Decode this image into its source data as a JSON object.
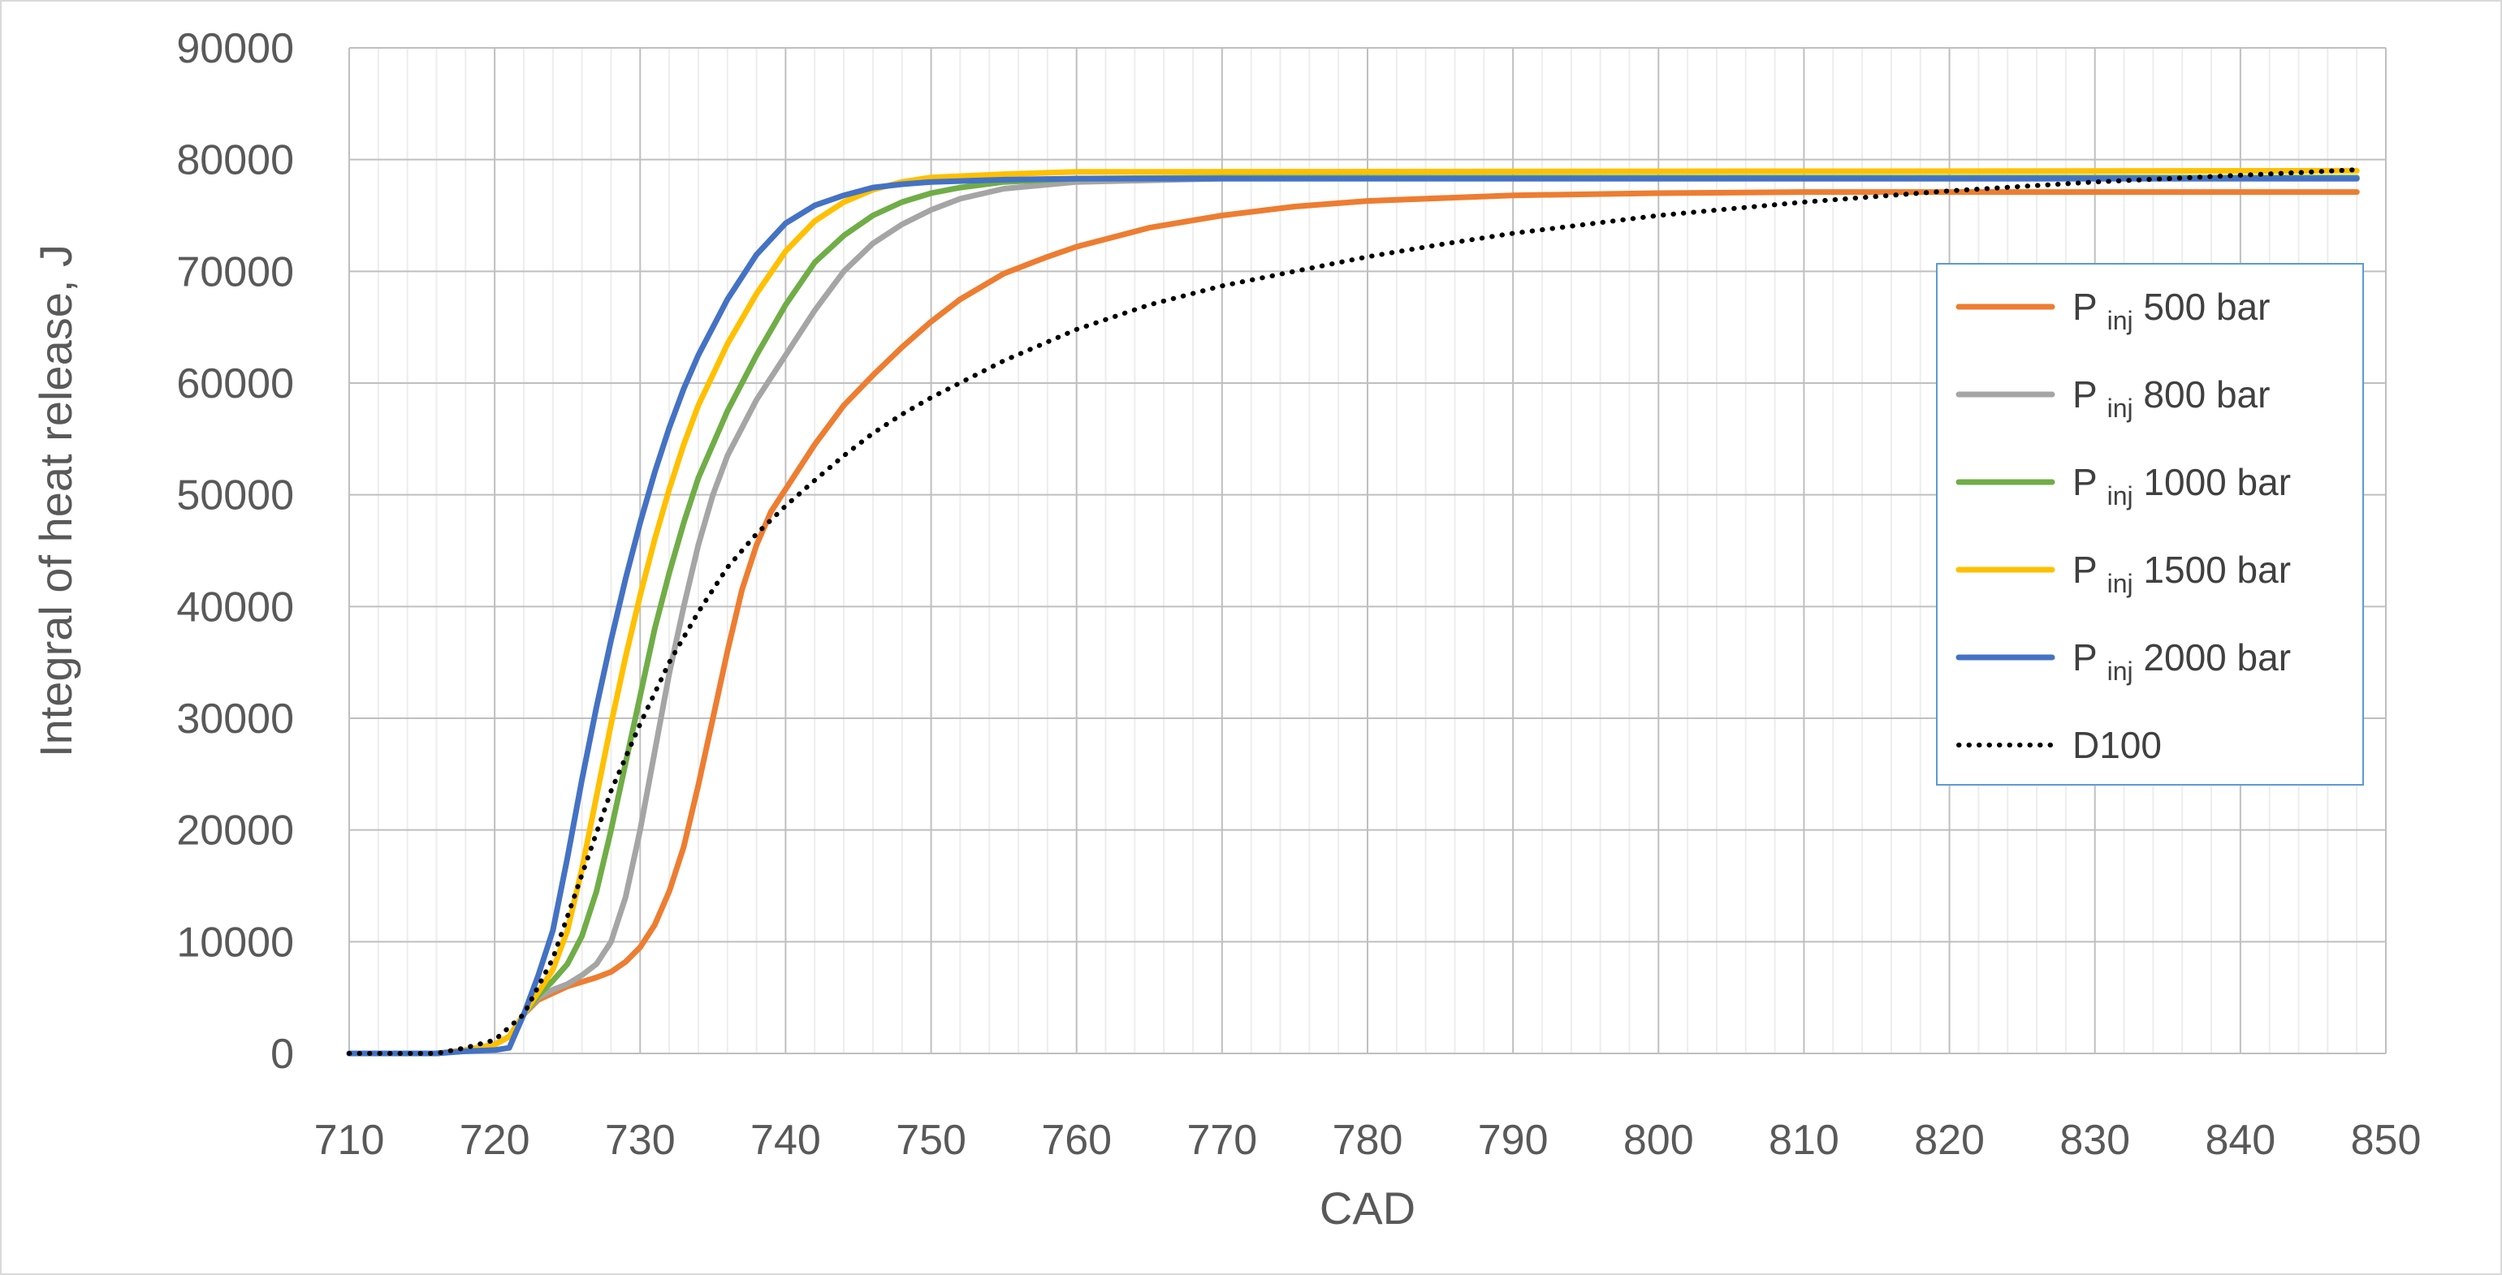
{
  "chart_data": {
    "type": "line",
    "title": "",
    "xlabel": "CAD",
    "ylabel": "Integral of heat release, J",
    "xlim": [
      710,
      850
    ],
    "ylim": [
      0,
      90000
    ],
    "x_ticks": [
      710,
      720,
      730,
      740,
      750,
      760,
      770,
      780,
      790,
      800,
      810,
      820,
      830,
      840,
      850
    ],
    "y_ticks": [
      0,
      10000,
      20000,
      30000,
      40000,
      50000,
      60000,
      70000,
      80000,
      90000
    ],
    "x_minor_step": 2,
    "grid": true,
    "legend_position": "right",
    "series": [
      {
        "name": "500 bar",
        "legend_prefix": "P",
        "legend_sub": "inj",
        "color": "#ED7D31",
        "style": "solid",
        "points": [
          [
            710,
            0
          ],
          [
            716,
            0
          ],
          [
            718,
            300
          ],
          [
            720,
            800
          ],
          [
            721,
            1500
          ],
          [
            722,
            3500
          ],
          [
            723,
            4800
          ],
          [
            724,
            5400
          ],
          [
            725,
            6000
          ],
          [
            726,
            6400
          ],
          [
            727,
            6800
          ],
          [
            728,
            7300
          ],
          [
            729,
            8200
          ],
          [
            730,
            9500
          ],
          [
            731,
            11500
          ],
          [
            732,
            14500
          ],
          [
            733,
            18500
          ],
          [
            734,
            24000
          ],
          [
            735,
            30000
          ],
          [
            736,
            36000
          ],
          [
            737,
            41500
          ],
          [
            738,
            45500
          ],
          [
            739,
            48500
          ],
          [
            740,
            50500
          ],
          [
            742,
            54500
          ],
          [
            744,
            58000
          ],
          [
            746,
            60700
          ],
          [
            748,
            63200
          ],
          [
            750,
            65500
          ],
          [
            752,
            67500
          ],
          [
            755,
            69800
          ],
          [
            758,
            71300
          ],
          [
            760,
            72200
          ],
          [
            765,
            73900
          ],
          [
            770,
            75000
          ],
          [
            775,
            75800
          ],
          [
            780,
            76300
          ],
          [
            790,
            76800
          ],
          [
            800,
            77000
          ],
          [
            810,
            77100
          ],
          [
            848,
            77100
          ]
        ]
      },
      {
        "name": "800 bar",
        "legend_prefix": "P",
        "legend_sub": "inj",
        "color": "#A5A5A5",
        "style": "solid",
        "points": [
          [
            710,
            0
          ],
          [
            716,
            0
          ],
          [
            718,
            300
          ],
          [
            720,
            800
          ],
          [
            721,
            1500
          ],
          [
            722,
            3500
          ],
          [
            723,
            5000
          ],
          [
            724,
            5700
          ],
          [
            725,
            6200
          ],
          [
            726,
            7000
          ],
          [
            727,
            8000
          ],
          [
            728,
            10000
          ],
          [
            729,
            14000
          ],
          [
            730,
            20000
          ],
          [
            731,
            27000
          ],
          [
            732,
            34000
          ],
          [
            733,
            40000
          ],
          [
            734,
            45500
          ],
          [
            735,
            50000
          ],
          [
            736,
            53500
          ],
          [
            738,
            58500
          ],
          [
            740,
            62500
          ],
          [
            742,
            66500
          ],
          [
            744,
            70000
          ],
          [
            746,
            72500
          ],
          [
            748,
            74200
          ],
          [
            750,
            75500
          ],
          [
            752,
            76500
          ],
          [
            755,
            77400
          ],
          [
            760,
            78000
          ],
          [
            770,
            78300
          ],
          [
            848,
            78300
          ]
        ]
      },
      {
        "name": "1000 bar",
        "legend_prefix": "P",
        "legend_sub": "inj",
        "color": "#70AD47",
        "style": "solid",
        "points": [
          [
            710,
            0
          ],
          [
            716,
            0
          ],
          [
            718,
            300
          ],
          [
            720,
            800
          ],
          [
            721,
            1500
          ],
          [
            722,
            3500
          ],
          [
            723,
            5200
          ],
          [
            724,
            6500
          ],
          [
            725,
            8000
          ],
          [
            726,
            10500
          ],
          [
            727,
            14500
          ],
          [
            728,
            20000
          ],
          [
            729,
            26000
          ],
          [
            730,
            32000
          ],
          [
            731,
            38000
          ],
          [
            732,
            43000
          ],
          [
            733,
            47500
          ],
          [
            734,
            51500
          ],
          [
            736,
            57500
          ],
          [
            738,
            62500
          ],
          [
            740,
            67000
          ],
          [
            742,
            70800
          ],
          [
            744,
            73200
          ],
          [
            746,
            75000
          ],
          [
            748,
            76200
          ],
          [
            750,
            77000
          ],
          [
            752,
            77500
          ],
          [
            755,
            78000
          ],
          [
            760,
            78300
          ],
          [
            770,
            78400
          ],
          [
            848,
            78400
          ]
        ]
      },
      {
        "name": "1500 bar",
        "legend_prefix": "P",
        "legend_sub": "inj",
        "color": "#FFC000",
        "style": "solid",
        "points": [
          [
            710,
            0
          ],
          [
            716,
            0
          ],
          [
            718,
            300
          ],
          [
            720,
            800
          ],
          [
            721,
            1500
          ],
          [
            722,
            3500
          ],
          [
            723,
            5500
          ],
          [
            724,
            7500
          ],
          [
            725,
            11000
          ],
          [
            726,
            16500
          ],
          [
            727,
            23000
          ],
          [
            728,
            29500
          ],
          [
            729,
            35500
          ],
          [
            730,
            41000
          ],
          [
            731,
            46000
          ],
          [
            732,
            50500
          ],
          [
            733,
            54500
          ],
          [
            734,
            58000
          ],
          [
            736,
            63500
          ],
          [
            738,
            68000
          ],
          [
            740,
            71800
          ],
          [
            742,
            74500
          ],
          [
            744,
            76200
          ],
          [
            746,
            77300
          ],
          [
            748,
            78000
          ],
          [
            750,
            78400
          ],
          [
            755,
            78700
          ],
          [
            760,
            78900
          ],
          [
            848,
            79000
          ]
        ]
      },
      {
        "name": "2000 bar",
        "legend_prefix": "P",
        "legend_sub": "inj",
        "color": "#4472C4",
        "style": "solid",
        "points": [
          [
            710,
            0
          ],
          [
            716,
            0
          ],
          [
            718,
            200
          ],
          [
            720,
            300
          ],
          [
            721,
            500
          ],
          [
            722,
            3500
          ],
          [
            723,
            7000
          ],
          [
            724,
            11000
          ],
          [
            725,
            17500
          ],
          [
            726,
            24500
          ],
          [
            727,
            31000
          ],
          [
            728,
            37000
          ],
          [
            729,
            42500
          ],
          [
            730,
            47500
          ],
          [
            731,
            52000
          ],
          [
            732,
            56000
          ],
          [
            733,
            59500
          ],
          [
            734,
            62500
          ],
          [
            736,
            67500
          ],
          [
            738,
            71500
          ],
          [
            740,
            74300
          ],
          [
            742,
            75900
          ],
          [
            744,
            76800
          ],
          [
            746,
            77500
          ],
          [
            748,
            77800
          ],
          [
            750,
            78000
          ],
          [
            755,
            78200
          ],
          [
            760,
            78300
          ],
          [
            770,
            78300
          ],
          [
            848,
            78300
          ]
        ]
      },
      {
        "name": "D100",
        "color": "#000000",
        "style": "dotted",
        "points": [
          [
            710,
            0
          ],
          [
            716,
            0
          ],
          [
            718,
            500
          ],
          [
            720,
            1200
          ],
          [
            722,
            3500
          ],
          [
            724,
            8500
          ],
          [
            726,
            16000
          ],
          [
            728,
            23500
          ],
          [
            730,
            29500
          ],
          [
            732,
            35000
          ],
          [
            734,
            39500
          ],
          [
            736,
            43500
          ],
          [
            738,
            46500
          ],
          [
            740,
            49000
          ],
          [
            742,
            51300
          ],
          [
            744,
            53500
          ],
          [
            746,
            55500
          ],
          [
            748,
            57200
          ],
          [
            750,
            58700
          ],
          [
            755,
            62000
          ],
          [
            760,
            64800
          ],
          [
            765,
            67000
          ],
          [
            770,
            68700
          ],
          [
            775,
            70000
          ],
          [
            780,
            71300
          ],
          [
            785,
            72400
          ],
          [
            790,
            73400
          ],
          [
            795,
            74200
          ],
          [
            800,
            75000
          ],
          [
            805,
            75600
          ],
          [
            810,
            76200
          ],
          [
            815,
            76700
          ],
          [
            820,
            77200
          ],
          [
            825,
            77600
          ],
          [
            830,
            78000
          ],
          [
            835,
            78300
          ],
          [
            840,
            78600
          ],
          [
            845,
            78900
          ],
          [
            848,
            79100
          ]
        ]
      }
    ]
  }
}
